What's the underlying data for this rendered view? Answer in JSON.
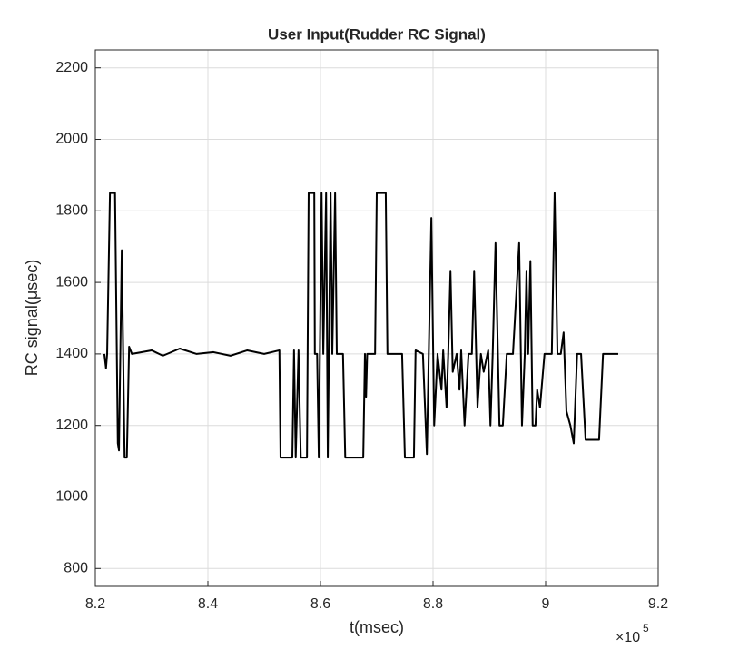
{
  "chart_data": {
    "type": "line",
    "title": "User Input(Rudder RC Signal)",
    "x_label": "t(msec)",
    "y_label": "RC signal(μsec)",
    "x_multiplier": {
      "base": "×10",
      "exponent": "5"
    },
    "xlim": [
      8.2,
      9.2
    ],
    "xticks": [
      8.2,
      8.4,
      8.6,
      8.8,
      9,
      9.2
    ],
    "ylim": [
      750,
      2250
    ],
    "yticks": [
      800,
      1000,
      1200,
      1400,
      1600,
      1800,
      2000,
      2200
    ],
    "grid": true,
    "series": [
      {
        "name": "Rudder RC Signal",
        "color": "#000000",
        "x": [
          8.216,
          8.219,
          8.221,
          8.226,
          8.235,
          8.24,
          8.242,
          8.247,
          8.252,
          8.256,
          8.26,
          8.265,
          8.3,
          8.32,
          8.35,
          8.38,
          8.41,
          8.44,
          8.47,
          8.5,
          8.527,
          8.529,
          8.55,
          8.553,
          8.556,
          8.561,
          8.565,
          8.576,
          8.579,
          8.589,
          8.59,
          8.594,
          8.597,
          8.602,
          8.605,
          8.61,
          8.613,
          8.618,
          8.621,
          8.626,
          8.629,
          8.64,
          8.644,
          8.676,
          8.679,
          8.681,
          8.683,
          8.697,
          8.7,
          8.716,
          8.719,
          8.745,
          8.75,
          8.766,
          8.769,
          8.782,
          8.789,
          8.797,
          8.802,
          8.808,
          8.815,
          8.818,
          8.824,
          8.827,
          8.831,
          8.835,
          8.842,
          8.847,
          8.85,
          8.856,
          8.863,
          8.869,
          8.873,
          8.879,
          8.885,
          8.89,
          8.898,
          8.902,
          8.906,
          8.911,
          8.918,
          8.924,
          8.931,
          8.942,
          8.953,
          8.958,
          8.963,
          8.966,
          8.969,
          8.973,
          8.977,
          8.982,
          8.985,
          8.99,
          8.998,
          9.011,
          9.016,
          9.021,
          9.027,
          9.032,
          9.037,
          9.044,
          9.05,
          9.056,
          9.063,
          9.071,
          9.095,
          9.102,
          9.129
        ],
        "values": [
          1400,
          1360,
          1400,
          1850,
          1850,
          1150,
          1130,
          1690,
          1110,
          1110,
          1420,
          1400,
          1410,
          1395,
          1415,
          1400,
          1405,
          1395,
          1410,
          1400,
          1410,
          1110,
          1110,
          1410,
          1110,
          1410,
          1110,
          1110,
          1850,
          1850,
          1400,
          1400,
          1110,
          1850,
          1400,
          1850,
          1110,
          1850,
          1400,
          1850,
          1400,
          1400,
          1110,
          1110,
          1400,
          1280,
          1400,
          1400,
          1850,
          1850,
          1400,
          1400,
          1110,
          1110,
          1410,
          1400,
          1120,
          1780,
          1200,
          1400,
          1300,
          1410,
          1250,
          1400,
          1630,
          1350,
          1400,
          1300,
          1410,
          1200,
          1400,
          1400,
          1630,
          1250,
          1400,
          1350,
          1410,
          1200,
          1400,
          1710,
          1200,
          1200,
          1400,
          1400,
          1710,
          1200,
          1400,
          1630,
          1400,
          1660,
          1200,
          1200,
          1300,
          1250,
          1400,
          1400,
          1850,
          1400,
          1400,
          1460,
          1240,
          1200,
          1150,
          1400,
          1400,
          1160,
          1160,
          1400,
          1400
        ]
      }
    ]
  }
}
